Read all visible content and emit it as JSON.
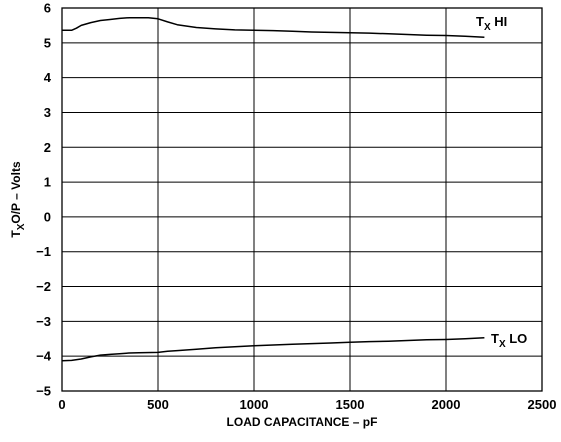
{
  "chart_data": {
    "type": "line",
    "xlabel": "LOAD CAPACITANCE – pF",
    "ylabel": {
      "main": "T",
      "sub": "X",
      "rest": "O/P – Volts"
    },
    "xlim": [
      0,
      2500
    ],
    "ylim": [
      -5,
      6
    ],
    "xticks": [
      0,
      500,
      1000,
      1500,
      2000,
      2500
    ],
    "yticks": [
      -5,
      -4,
      -3,
      -2,
      -1,
      0,
      1,
      2,
      3,
      4,
      5,
      6
    ],
    "xtick_labels": [
      "0",
      "500",
      "1000",
      "1500",
      "2000",
      "2500"
    ],
    "ytick_labels": [
      "−5",
      "−4",
      "−3",
      "−2",
      "−1",
      "0",
      "1",
      "2",
      "3",
      "4",
      "5",
      "6"
    ],
    "grid": true,
    "series": [
      {
        "name": {
          "main": "T",
          "sub": "X",
          "rest": " HI"
        },
        "x": [
          0,
          50,
          75,
          100,
          150,
          200,
          250,
          300,
          350,
          400,
          450,
          500,
          550,
          600,
          700,
          800,
          900,
          1000,
          1100,
          1200,
          1300,
          1400,
          1500,
          1600,
          1700,
          1800,
          1900,
          2000,
          2100,
          2200
        ],
        "y": [
          5.36,
          5.36,
          5.42,
          5.5,
          5.58,
          5.64,
          5.67,
          5.7,
          5.72,
          5.72,
          5.72,
          5.69,
          5.6,
          5.52,
          5.44,
          5.4,
          5.37,
          5.36,
          5.35,
          5.33,
          5.31,
          5.3,
          5.29,
          5.28,
          5.26,
          5.24,
          5.22,
          5.21,
          5.19,
          5.16
        ]
      },
      {
        "name": {
          "main": "T",
          "sub": "X",
          "rest": " LO"
        },
        "x": [
          0,
          50,
          100,
          150,
          200,
          250,
          300,
          350,
          400,
          500,
          550,
          600,
          700,
          800,
          900,
          1000,
          1100,
          1200,
          1300,
          1400,
          1500,
          1600,
          1700,
          1800,
          1900,
          2000,
          2100,
          2200
        ],
        "y": [
          -4.13,
          -4.12,
          -4.08,
          -4.02,
          -3.97,
          -3.95,
          -3.93,
          -3.91,
          -3.9,
          -3.89,
          -3.86,
          -3.84,
          -3.8,
          -3.76,
          -3.73,
          -3.7,
          -3.68,
          -3.66,
          -3.64,
          -3.62,
          -3.6,
          -3.58,
          -3.57,
          -3.55,
          -3.53,
          -3.52,
          -3.5,
          -3.47
        ]
      }
    ]
  }
}
